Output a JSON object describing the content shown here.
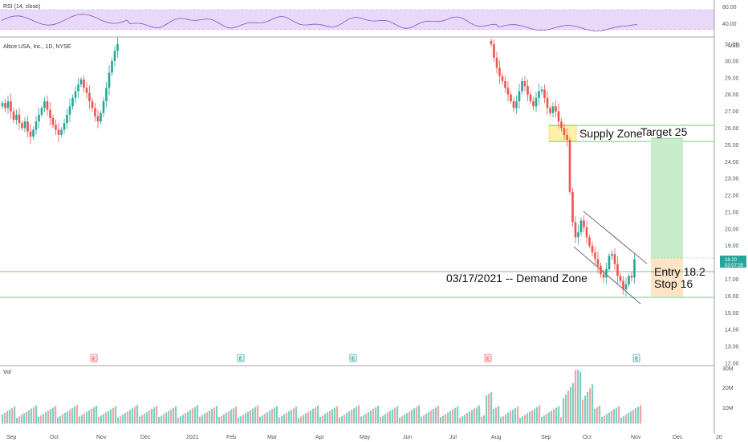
{
  "panels": {
    "rsi": {
      "label": "RSI (14, close)",
      "ticks": [
        "80.00",
        "40.00"
      ]
    },
    "price": {
      "label": "Altice USA, Inc., 1D, NYSE",
      "currency": "USD",
      "ticks": [
        "31.00",
        "30.00",
        "29.00",
        "28.00",
        "27.00",
        "26.00",
        "25.00",
        "24.00",
        "23.00",
        "22.00",
        "21.00",
        "20.00",
        "19.00",
        "18.00",
        "17.00",
        "16.00",
        "15.00",
        "14.00",
        "13.00",
        "12.00"
      ],
      "last_price": "18.20",
      "countdown": "03:07:35"
    },
    "volume": {
      "label": "Vol",
      "ticks": [
        "30M",
        "20M",
        "10M"
      ]
    }
  },
  "annotations": {
    "supply_zone": "Supply Zone",
    "target": "Target 25",
    "demand_zone": "03/17/2021 -- Demand Zone",
    "entry": "Entry 18.2",
    "stop": "Stop 16"
  },
  "earnings_marker": "E",
  "x_axis": [
    "Sep",
    "Oct",
    "Nov",
    "Dec",
    "2021",
    "Feb",
    "Mar",
    "Apr",
    "May",
    "Jun",
    "Jul",
    "Aug",
    "Sep",
    "Oct",
    "Nov",
    "Dec",
    "20"
  ],
  "colors": {
    "up": "#26a69a",
    "down": "#ef5350",
    "rsi_line": "#7e57c2",
    "rsi_band": "#e9d8f7",
    "zone_line": "#4caf50",
    "target_box": "#c8ecc9",
    "stop_box": "#fde4c8",
    "supply_box": "#fff2a8"
  },
  "chart_data": {
    "type": "candlestick",
    "title": "Altice USA, Inc., 1D, NYSE",
    "ylim": [
      12,
      31
    ],
    "series": [
      {
        "name": "price",
        "note": "candles Sep-Nov 2020 then Aug-Nov 2021",
        "segment1_close": [
          27.5,
          27.2,
          27.6,
          27.0,
          26.5,
          26.8,
          26.3,
          26.0,
          26.4,
          25.8,
          25.5,
          25.9,
          26.4,
          26.8,
          27.2,
          27.6,
          27.1,
          26.6,
          26.2,
          25.9,
          25.6,
          25.9,
          26.3,
          26.8,
          27.3,
          27.8,
          28.2,
          28.6,
          28.9,
          28.4,
          28.1,
          27.6,
          27.2,
          26.7,
          26.4,
          26.9,
          27.6,
          28.4,
          29.3,
          30.0,
          30.6,
          31.0
        ],
        "segment2_close": [
          31.0,
          30.2,
          29.6,
          29.1,
          28.8,
          28.4,
          28.0,
          27.6,
          27.2,
          27.6,
          28.2,
          28.8,
          28.5,
          28.0,
          27.6,
          27.3,
          27.8,
          28.2,
          28.3,
          27.8,
          27.2,
          26.9,
          27.3,
          27.0,
          26.4,
          26.0,
          25.6,
          25.3,
          22.2,
          20.4,
          19.5,
          19.8,
          20.5,
          20.1,
          19.5,
          19.0,
          18.6,
          18.2,
          17.8,
          17.3,
          17.1,
          17.6,
          18.4,
          18.5,
          17.9,
          17.2,
          16.9,
          16.4,
          16.7,
          17.2,
          17.1,
          18.2
        ]
      }
    ],
    "volume": {
      "ylim": [
        0,
        30
      ]
    },
    "rsi": {
      "ylim": [
        0,
        100
      ],
      "levels": [
        80,
        40
      ]
    },
    "levels": {
      "supply_top": 26.1,
      "supply_bottom": 25.1,
      "target": 25.3,
      "entry": 18.2,
      "demand_top": 17.6,
      "stop": 16.0
    }
  }
}
